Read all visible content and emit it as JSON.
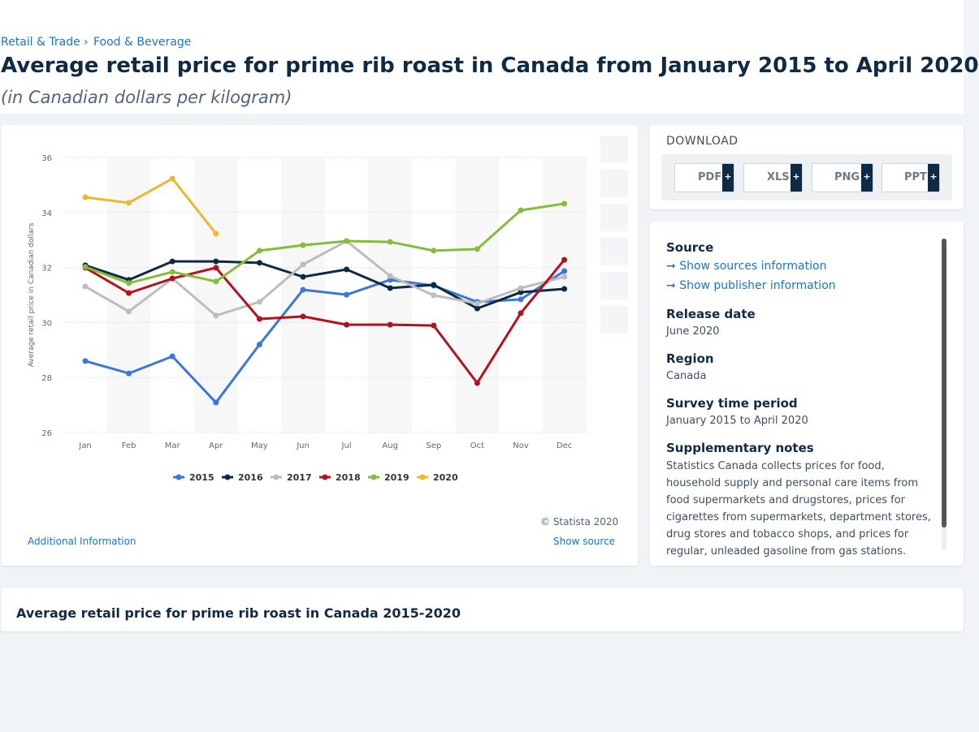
{
  "breadcrumbs": [
    "Retail & Trade",
    "Food & Beverage"
  ],
  "breadcrumb_separator": "›",
  "title": "Average retail price for prime rib roast in Canada from January 2015 to April 2020",
  "subtitle": "(in Canadian dollars per kilogram)",
  "chart_data": {
    "type": "line",
    "y_label": "Average retail price in Canadian dollars",
    "categories": [
      "Jan",
      "Feb",
      "Mar",
      "Apr",
      "May",
      "Jun",
      "Jul",
      "Aug",
      "Sep",
      "Oct",
      "Nov",
      "Dec"
    ],
    "ylim": [
      26,
      36
    ],
    "yticks": [
      26,
      28,
      30,
      32,
      34,
      36
    ],
    "grid": true,
    "legend": "bottom",
    "series": [
      {
        "name": "2015",
        "color": "#3a77d8",
        "values": [
          28.6,
          28.15,
          28.77,
          27.09,
          29.2,
          31.19,
          31.01,
          31.55,
          31.34,
          30.75,
          30.84,
          31.87
        ]
      },
      {
        "name": "2016",
        "color": "#0e2a47",
        "values": [
          32.08,
          31.55,
          32.22,
          32.22,
          32.17,
          31.66,
          31.93,
          31.25,
          31.37,
          30.51,
          31.1,
          31.22
        ]
      },
      {
        "name": "2017",
        "color": "#bdbdbd",
        "values": [
          31.31,
          30.4,
          31.6,
          30.25,
          30.75,
          32.11,
          32.96,
          31.69,
          30.99,
          30.69,
          31.25,
          31.66
        ]
      },
      {
        "name": "2018",
        "color": "#b3121c",
        "values": [
          31.99,
          31.07,
          31.6,
          31.99,
          30.13,
          30.22,
          29.92,
          29.92,
          29.89,
          27.8,
          30.34,
          32.28
        ]
      },
      {
        "name": "2019",
        "color": "#85bd3a",
        "values": [
          32.02,
          31.43,
          31.84,
          31.49,
          32.61,
          32.81,
          32.96,
          32.93,
          32.61,
          32.67,
          34.08,
          34.32
        ]
      },
      {
        "name": "2020",
        "color": "#e8b931",
        "values": [
          34.55,
          34.35,
          35.23,
          33.23,
          null,
          null,
          null,
          null,
          null,
          null,
          null,
          null
        ]
      }
    ]
  },
  "copyright": "© Statista 2020",
  "additional_information": "Additional Information",
  "show_source": "Show source",
  "download": {
    "title": "DOWNLOAD",
    "buttons": [
      "PDF",
      "XLS",
      "PNG",
      "PPT"
    ],
    "plus": "+"
  },
  "info": {
    "source_label": "Source",
    "show_sources": "Show sources information",
    "show_publisher": "Show publisher information",
    "release_label": "Release date",
    "release": "June 2020",
    "region_label": "Region",
    "region": "Canada",
    "period_label": "Survey time period",
    "period": "January 2015 to April 2020",
    "notes_label": "Supplementary notes",
    "notes": "Statistics Canada collects prices for food, household supply and personal care items from food supermarkets and drugstores, prices for cigarettes from supermarkets, department stores, drug stores and tobacco shops, and prices for regular, unleaded gasoline from gas stations."
  },
  "bottom_heading": "Average retail price for prime rib roast in Canada 2015-2020"
}
